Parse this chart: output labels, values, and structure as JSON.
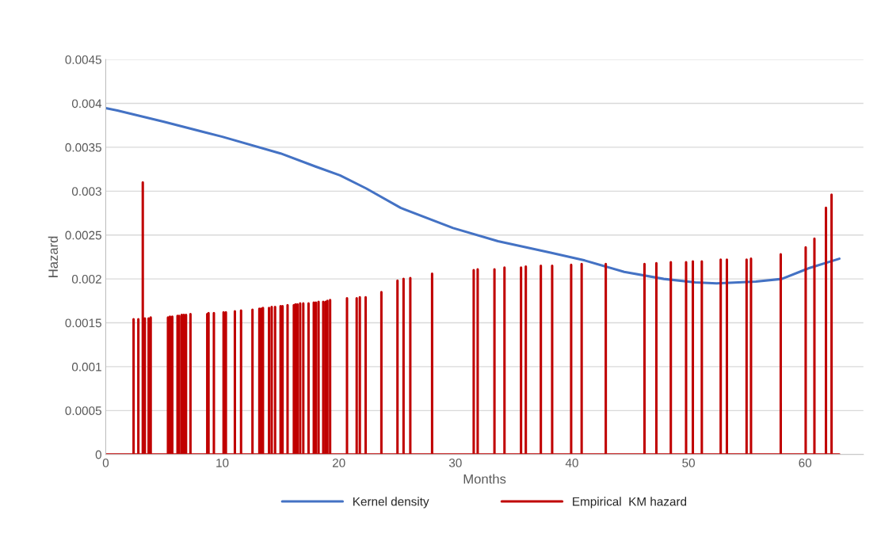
{
  "chart_data": {
    "type": "line",
    "xlabel": "Months",
    "ylabel": "Hazard",
    "xlim": [
      0,
      65
    ],
    "xticks": [
      0,
      10,
      20,
      30,
      40,
      50,
      60
    ],
    "ylim": [
      0,
      0.0045
    ],
    "yticks": [
      0,
      0.0005,
      0.001,
      0.0015,
      0.002,
      0.0025,
      0.003,
      0.0035,
      0.004,
      0.0045
    ],
    "grid": "y",
    "legend": "bottom",
    "marker": "none",
    "line_style": "solid",
    "series": [
      {
        "name": "Kernel density",
        "color": "#4472c4",
        "x": [
          0,
          1,
          5,
          10,
          15,
          18,
          20.1,
          22.36,
          25.3,
          29.8,
          33.65,
          38.17,
          41.1,
          44.48,
          47.87,
          50.57,
          52.4,
          55.77,
          58.0,
          60.28,
          62.94
        ],
        "values": [
          0.003945,
          0.00392,
          0.00379,
          0.00362,
          0.00343,
          0.00328,
          0.00318,
          0.00303,
          0.00281,
          0.00258,
          0.00243,
          0.0023,
          0.00221,
          0.00208,
          0.002,
          0.00196,
          0.00195,
          0.00197,
          0.002,
          0.00212,
          0.00223
        ]
      },
      {
        "name": "Empirical  KM hazard",
        "color": "#c00000",
        "x": [
          0,
          2.39,
          2.39,
          2.39,
          2.8,
          2.8,
          2.8,
          3.18,
          3.18,
          3.18,
          3.36,
          3.36,
          3.36,
          3.68,
          3.68,
          3.68,
          3.86,
          3.86,
          3.86,
          5.34,
          5.34,
          5.34,
          5.51,
          5.51,
          5.51,
          5.71,
          5.71,
          5.71,
          6.16,
          6.16,
          6.16,
          6.3,
          6.3,
          6.3,
          6.52,
          6.52,
          6.52,
          6.7,
          6.7,
          6.7,
          6.89,
          6.89,
          6.89,
          7.27,
          7.27,
          7.27,
          8.71,
          8.71,
          8.71,
          8.82,
          8.82,
          8.82,
          9.28,
          9.28,
          9.28,
          10.11,
          10.11,
          10.11,
          10.31,
          10.31,
          10.31,
          11.08,
          11.08,
          11.08,
          11.61,
          11.61,
          11.61,
          12.59,
          12.59,
          12.59,
          13.18,
          13.18,
          13.18,
          13.34,
          13.34,
          13.34,
          13.49,
          13.49,
          13.49,
          14.01,
          14.01,
          14.01,
          14.24,
          14.24,
          14.24,
          14.53,
          14.53,
          14.53,
          15.0,
          15.0,
          15.0,
          15.17,
          15.17,
          15.17,
          15.6,
          15.6,
          15.6,
          16.14,
          16.14,
          16.14,
          16.28,
          16.28,
          16.28,
          16.45,
          16.45,
          16.45,
          16.68,
          16.68,
          16.68,
          16.95,
          16.95,
          16.95,
          17.4,
          17.4,
          17.4,
          17.85,
          17.85,
          17.85,
          18.03,
          18.03,
          18.03,
          18.26,
          18.26,
          18.26,
          18.66,
          18.66,
          18.66,
          18.87,
          18.87,
          18.87,
          19.02,
          19.02,
          19.02,
          19.25,
          19.25,
          19.25,
          20.7,
          20.7,
          20.7,
          21.53,
          21.53,
          21.53,
          21.8,
          21.8,
          21.8,
          22.3,
          22.3,
          22.3,
          23.65,
          23.65,
          23.65,
          25.03,
          25.03,
          25.03,
          25.55,
          25.55,
          25.55,
          26.13,
          26.13,
          26.13,
          28.0,
          28.0,
          28.0,
          31.57,
          31.57,
          31.57,
          31.91,
          31.91,
          31.91,
          33.35,
          33.35,
          33.35,
          34.21,
          34.21,
          34.21,
          35.63,
          35.63,
          35.63,
          36.04,
          36.04,
          36.04,
          37.33,
          37.33,
          37.33,
          38.3,
          38.3,
          38.3,
          39.93,
          39.93,
          39.93,
          40.83,
          40.83,
          40.83,
          42.9,
          42.9,
          42.9,
          46.22,
          46.22,
          46.22,
          47.24,
          47.24,
          47.24,
          48.48,
          48.48,
          48.48,
          49.79,
          49.79,
          49.79,
          50.37,
          50.37,
          50.37,
          51.14,
          51.14,
          51.14,
          52.76,
          52.76,
          52.76,
          53.29,
          53.29,
          53.29,
          54.98,
          54.98,
          54.98,
          55.36,
          55.36,
          55.36,
          57.91,
          57.91,
          57.91,
          60.05,
          60.05,
          60.05,
          60.8,
          60.8,
          60.8,
          61.79,
          61.79,
          61.79,
          62.27,
          62.27,
          62.27,
          62.94
        ],
        "values": [
          0,
          0,
          0.00154,
          0,
          0,
          0.00154,
          0,
          0,
          0.0031,
          0,
          0,
          0.00155,
          0,
          0,
          0.00155,
          0,
          0,
          0.00156,
          0,
          0,
          0.00156,
          0,
          0,
          0.00157,
          0,
          0,
          0.00157,
          0,
          0,
          0.00158,
          0,
          0,
          0.00158,
          0,
          0,
          0.00159,
          0,
          0,
          0.00159,
          0,
          0,
          0.00159,
          0,
          0,
          0.0016,
          0,
          0,
          0.0016,
          0,
          0,
          0.00161,
          0,
          0,
          0.00161,
          0,
          0,
          0.00162,
          0,
          0,
          0.00162,
          0,
          0,
          0.00163,
          0,
          0,
          0.00164,
          0,
          0,
          0.00165,
          0,
          0,
          0.00166,
          0,
          0,
          0.00166,
          0,
          0,
          0.00167,
          0,
          0,
          0.00167,
          0,
          0,
          0.00168,
          0,
          0,
          0.00168,
          0,
          0,
          0.00169,
          0,
          0,
          0.00169,
          0,
          0,
          0.0017,
          0,
          0,
          0.0017,
          0,
          0,
          0.00171,
          0,
          0,
          0.00171,
          0,
          0,
          0.00172,
          0,
          0,
          0.00172,
          0,
          0,
          0.00172,
          0,
          0,
          0.00173,
          0,
          0,
          0.00173,
          0,
          0,
          0.00174,
          0,
          0,
          0.00174,
          0,
          0,
          0.00174,
          0,
          0,
          0.00175,
          0,
          0,
          0.00176,
          0,
          0,
          0.00178,
          0,
          0,
          0.00178,
          0,
          0,
          0.00179,
          0,
          0,
          0.00179,
          0,
          0,
          0.00185,
          0,
          0,
          0.00198,
          0,
          0,
          0.002,
          0,
          0,
          0.00201,
          0,
          0,
          0.00206,
          0,
          0,
          0.0021,
          0,
          0,
          0.00211,
          0,
          0,
          0.00211,
          0,
          0,
          0.00213,
          0,
          0,
          0.00213,
          0,
          0,
          0.00214,
          0,
          0,
          0.00215,
          0,
          0,
          0.00215,
          0,
          0,
          0.00216,
          0,
          0,
          0.00217,
          0,
          0,
          0.00217,
          0,
          0,
          0.00217,
          0,
          0,
          0.00218,
          0,
          0,
          0.00219,
          0,
          0,
          0.00219,
          0,
          0,
          0.0022,
          0,
          0,
          0.0022,
          0,
          0,
          0.00222,
          0,
          0,
          0.00222,
          0,
          0,
          0.00222,
          0,
          0,
          0.00223,
          0,
          0,
          0.00228,
          0,
          0,
          0.00236,
          0,
          0,
          0.00246,
          0,
          0,
          0.00281,
          0,
          0,
          0.00296,
          0,
          0
        ]
      }
    ]
  }
}
